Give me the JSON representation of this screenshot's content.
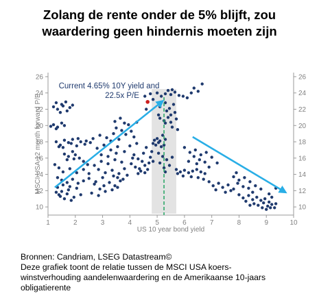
{
  "title_lines": [
    "Zolang de rente onder de 5% blijft, zou",
    "waardering geen hindernis moeten zijn"
  ],
  "footer_lines": [
    "Bronnen: Candriam, LSEG Datastream©",
    "Deze grafiek toont de relatie tussen de MSCI USA koers-",
    "winstverhouding aandelenwaardering en de Amerikaanse 10-jaars",
    "obligatierente"
  ],
  "colors": {
    "dots": "#1f3a6e",
    "highlight": "#cc1f1f",
    "arrow": "#29aee6",
    "band": "#e3e3e3",
    "dashed": "#2fa86a",
    "annotation": "#1f3a6e",
    "axis_text": "#808080"
  },
  "chart_data": {
    "type": "scatter",
    "xlabel": "US 10 year bond yield",
    "ylabel": "MSCI USA 12 month forward P/E",
    "xlim": [
      1,
      10
    ],
    "ylim": [
      9,
      26.5
    ],
    "xticks": [
      1,
      2,
      3,
      4,
      5,
      6,
      7,
      8,
      9,
      10
    ],
    "yticks": [
      10,
      12,
      14,
      16,
      18,
      20,
      22,
      24,
      26
    ],
    "annotation": {
      "text_lines": [
        "Current 4.65% 10Y yield and",
        "22.5x P/E"
      ],
      "x": 4.65,
      "y": 22.5
    },
    "band": {
      "x_from": 4.8,
      "x_to": 5.7
    },
    "vertical_line_x": 5.25,
    "arrows": [
      {
        "from": [
          1.25,
          12.4
        ],
        "to": [
          5.2,
          23.0
        ]
      },
      {
        "from": [
          6.3,
          18.6
        ],
        "to": [
          9.7,
          11.8
        ]
      }
    ],
    "points": [
      [
        1.2,
        22.3
      ],
      [
        1.35,
        22.0
      ],
      [
        1.5,
        22.6
      ],
      [
        1.65,
        22.9
      ],
      [
        1.8,
        22.2
      ],
      [
        1.9,
        22.5
      ],
      [
        1.45,
        21.6
      ],
      [
        1.7,
        21.8
      ],
      [
        1.55,
        22.4
      ],
      [
        1.3,
        22.8
      ],
      [
        1.2,
        20.1
      ],
      [
        1.35,
        19.8
      ],
      [
        1.5,
        20.3
      ],
      [
        1.3,
        19.6
      ],
      [
        1.6,
        20.0
      ],
      [
        1.1,
        19.9
      ],
      [
        1.3,
        18.0
      ],
      [
        1.45,
        17.6
      ],
      [
        1.6,
        18.2
      ],
      [
        1.75,
        17.9
      ],
      [
        1.9,
        18.3
      ],
      [
        2.05,
        17.5
      ],
      [
        2.2,
        18.0
      ],
      [
        2.35,
        17.7
      ],
      [
        1.55,
        17.3
      ],
      [
        1.85,
        17.8
      ],
      [
        2.1,
        18.4
      ],
      [
        2.4,
        18.1
      ],
      [
        1.4,
        17.4
      ],
      [
        2.55,
        17.9
      ],
      [
        1.6,
        16.5
      ],
      [
        1.75,
        16.2
      ],
      [
        1.9,
        16.8
      ],
      [
        2.0,
        16.4
      ],
      [
        2.15,
        16.0
      ],
      [
        1.7,
        15.8
      ],
      [
        2.3,
        15.6
      ],
      [
        2.45,
        15.2
      ],
      [
        1.95,
        15.9
      ],
      [
        1.25,
        15.2
      ],
      [
        1.4,
        14.8
      ],
      [
        1.55,
        14.3
      ],
      [
        1.8,
        14.7
      ],
      [
        2.05,
        14.2
      ],
      [
        2.3,
        14.6
      ],
      [
        2.5,
        14.1
      ],
      [
        1.35,
        13.6
      ],
      [
        1.5,
        13.3
      ],
      [
        1.7,
        13.0
      ],
      [
        1.9,
        13.4
      ],
      [
        2.1,
        12.9
      ],
      [
        2.3,
        13.2
      ],
      [
        1.55,
        12.7
      ],
      [
        1.8,
        12.5
      ],
      [
        2.05,
        12.3
      ],
      [
        1.35,
        12.4
      ],
      [
        1.5,
        11.9
      ],
      [
        1.7,
        11.6
      ],
      [
        1.95,
        11.2
      ],
      [
        2.2,
        11.5
      ],
      [
        1.6,
        11.0
      ],
      [
        1.85,
        10.8
      ],
      [
        1.45,
        11.3
      ],
      [
        1.3,
        11.8
      ],
      [
        1.75,
        12.1
      ],
      [
        1.4,
        11.5
      ],
      [
        2.5,
        13.5
      ],
      [
        2.7,
        12.8
      ],
      [
        2.9,
        12.2
      ],
      [
        3.1,
        11.9
      ],
      [
        3.35,
        12.1
      ],
      [
        3.55,
        12.4
      ],
      [
        2.6,
        11.7
      ],
      [
        2.85,
        11.4
      ],
      [
        3.05,
        12.6
      ],
      [
        3.25,
        13.0
      ],
      [
        3.45,
        12.6
      ],
      [
        3.65,
        13.2
      ],
      [
        3.0,
        13.6
      ],
      [
        3.4,
        13.8
      ],
      [
        2.75,
        13.1
      ],
      [
        2.7,
        15.1
      ],
      [
        2.95,
        15.6
      ],
      [
        3.2,
        15.3
      ],
      [
        3.45,
        15.8
      ],
      [
        3.7,
        15.5
      ],
      [
        2.85,
        14.6
      ],
      [
        3.1,
        14.2
      ],
      [
        3.35,
        14.5
      ],
      [
        3.6,
        14.1
      ],
      [
        3.8,
        14.7
      ],
      [
        3.55,
        13.6
      ],
      [
        3.75,
        13.4
      ],
      [
        3.9,
        13.9
      ],
      [
        2.8,
        17.2
      ],
      [
        3.05,
        17.6
      ],
      [
        3.3,
        17.0
      ],
      [
        3.55,
        17.4
      ],
      [
        3.8,
        16.8
      ],
      [
        2.95,
        16.4
      ],
      [
        3.2,
        16.2
      ],
      [
        3.5,
        16.6
      ],
      [
        2.9,
        18.8
      ],
      [
        3.15,
        18.5
      ],
      [
        3.4,
        19.0
      ],
      [
        3.6,
        18.3
      ],
      [
        3.3,
        18.1
      ],
      [
        2.65,
        18.4
      ],
      [
        3.5,
        19.7
      ],
      [
        3.8,
        20.3
      ],
      [
        3.65,
        20.9
      ],
      [
        3.95,
        20.1
      ],
      [
        4.05,
        19.3
      ],
      [
        3.85,
        18.9
      ],
      [
        4.15,
        18.6
      ],
      [
        3.7,
        19.4
      ],
      [
        4.25,
        20.4
      ],
      [
        3.45,
        20.5
      ],
      [
        4.0,
        17.5
      ],
      [
        4.15,
        16.4
      ],
      [
        4.3,
        15.9
      ],
      [
        4.45,
        15.6
      ],
      [
        4.05,
        15.3
      ],
      [
        4.2,
        14.9
      ],
      [
        4.35,
        14.7
      ],
      [
        4.55,
        15.1
      ],
      [
        4.65,
        14.6
      ],
      [
        4.1,
        16.0
      ],
      [
        4.5,
        16.6
      ],
      [
        4.75,
        16.1
      ],
      [
        4.6,
        17.3
      ],
      [
        4.25,
        17.8
      ],
      [
        4.8,
        16.8
      ],
      [
        4.4,
        14.4
      ],
      [
        4.7,
        15.4
      ],
      [
        4.55,
        14.2
      ],
      [
        4.3,
        14.1
      ],
      [
        4.85,
        15.6
      ],
      [
        4.85,
        17.8
      ],
      [
        4.9,
        18.2
      ],
      [
        5.0,
        18.4
      ],
      [
        5.05,
        17.9
      ],
      [
        4.95,
        17.6
      ],
      [
        5.1,
        18.1
      ],
      [
        5.2,
        18.8
      ],
      [
        5.3,
        18.3
      ],
      [
        5.15,
        17.4
      ],
      [
        5.25,
        17.6
      ],
      [
        4.55,
        23.6
      ],
      [
        4.75,
        23.9
      ],
      [
        4.85,
        23.2
      ],
      [
        5.0,
        24.0
      ],
      [
        5.15,
        23.6
      ],
      [
        5.3,
        23.9
      ],
      [
        5.4,
        24.3
      ],
      [
        5.5,
        23.8
      ],
      [
        5.65,
        24.1
      ],
      [
        5.8,
        23.7
      ],
      [
        5.95,
        23.6
      ],
      [
        5.55,
        24.4
      ],
      [
        5.1,
        22.3
      ],
      [
        5.3,
        22.8
      ],
      [
        5.6,
        22.6
      ],
      [
        4.6,
        22.0
      ],
      [
        5.35,
        21.8
      ],
      [
        5.5,
        21.3
      ],
      [
        5.65,
        21.6
      ],
      [
        5.45,
        22.1
      ],
      [
        6.1,
        23.4
      ],
      [
        6.35,
        24.6
      ],
      [
        6.5,
        24.2
      ],
      [
        6.65,
        25.1
      ],
      [
        6.25,
        24.0
      ],
      [
        5.1,
        20.9
      ],
      [
        5.25,
        20.6
      ],
      [
        5.4,
        21.0
      ],
      [
        5.5,
        20.4
      ],
      [
        5.7,
        20.8
      ],
      [
        5.3,
        20.3
      ],
      [
        5.55,
        19.8
      ],
      [
        5.75,
        19.5
      ],
      [
        5.05,
        21.3
      ],
      [
        5.05,
        16.6
      ],
      [
        5.2,
        16.2
      ],
      [
        5.35,
        15.8
      ],
      [
        5.45,
        15.1
      ],
      [
        5.25,
        14.8
      ],
      [
        5.1,
        15.4
      ],
      [
        5.3,
        14.3
      ],
      [
        5.55,
        16.1
      ],
      [
        5.7,
        14.6
      ],
      [
        5.85,
        14.3
      ],
      [
        6.0,
        14.5
      ],
      [
        6.15,
        14.2
      ],
      [
        6.3,
        14.4
      ],
      [
        6.45,
        14.6
      ],
      [
        6.6,
        14.3
      ],
      [
        6.75,
        14.1
      ],
      [
        5.95,
        13.8
      ],
      [
        6.25,
        13.7
      ],
      [
        6.5,
        13.6
      ],
      [
        6.7,
        13.4
      ],
      [
        5.75,
        14.1
      ],
      [
        6.0,
        17.3
      ],
      [
        6.2,
        16.7
      ],
      [
        6.4,
        17.0
      ],
      [
        6.6,
        16.4
      ],
      [
        6.8,
        16.7
      ],
      [
        6.35,
        16.2
      ],
      [
        6.55,
        15.8
      ],
      [
        6.75,
        15.5
      ],
      [
        7.0,
        16.1
      ],
      [
        7.2,
        15.4
      ],
      [
        6.9,
        14.9
      ],
      [
        6.15,
        15.6
      ],
      [
        6.45,
        15.3
      ],
      [
        6.9,
        13.1
      ],
      [
        7.05,
        12.6
      ],
      [
        7.25,
        12.9
      ],
      [
        7.4,
        12.4
      ],
      [
        7.6,
        12.7
      ],
      [
        7.8,
        12.2
      ],
      [
        7.15,
        12.1
      ],
      [
        7.5,
        11.8
      ],
      [
        7.7,
        12.0
      ],
      [
        7.8,
        13.7
      ],
      [
        8.0,
        13.3
      ],
      [
        8.2,
        13.6
      ],
      [
        8.4,
        13.1
      ],
      [
        7.95,
        12.9
      ],
      [
        8.15,
        12.5
      ],
      [
        8.35,
        12.3
      ],
      [
        8.6,
        12.6
      ],
      [
        8.8,
        12.2
      ],
      [
        8.5,
        11.8
      ],
      [
        7.9,
        14.2
      ],
      [
        8.0,
        11.5
      ],
      [
        8.15,
        11.1
      ],
      [
        8.35,
        11.4
      ],
      [
        8.5,
        10.9
      ],
      [
        8.65,
        11.2
      ],
      [
        8.8,
        10.8
      ],
      [
        8.95,
        11.0
      ],
      [
        8.25,
        10.7
      ],
      [
        8.55,
        10.4
      ],
      [
        8.7,
        10.2
      ],
      [
        8.9,
        10.5
      ],
      [
        9.05,
        10.1
      ],
      [
        9.1,
        10.6
      ],
      [
        9.2,
        10.3
      ],
      [
        9.3,
        9.9
      ],
      [
        9.0,
        9.7
      ],
      [
        9.15,
        9.9
      ],
      [
        8.4,
        10.2
      ],
      [
        9.35,
        10.4
      ],
      [
        8.85,
        9.9
      ],
      [
        9.1,
        11.6
      ],
      [
        9.35,
        12.3
      ],
      [
        9.2,
        11.2
      ]
    ]
  }
}
